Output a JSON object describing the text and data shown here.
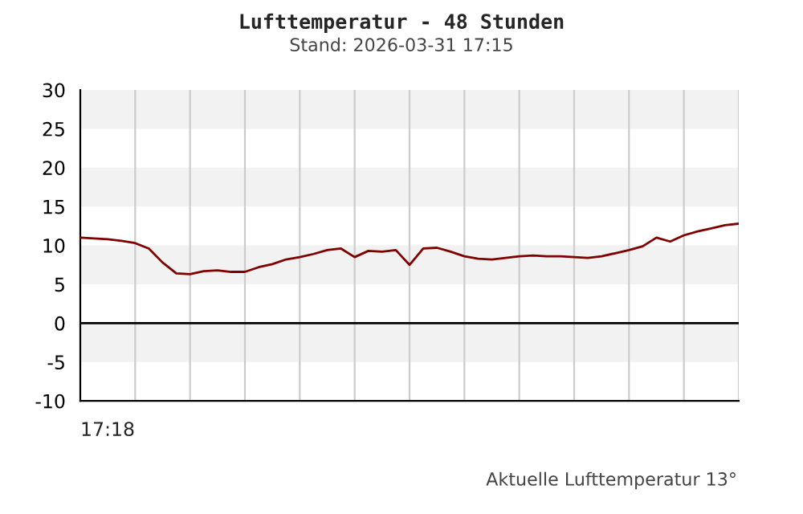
{
  "chart_data": {
    "type": "line",
    "title": "Lufttemperatur - 48 Stunden",
    "subtitle": "Stand: 2026-03-31 17:15",
    "annotations": [
      "17:18",
      "Aktuelle Lufttemperatur 13°"
    ],
    "categories": [
      null,
      null,
      null,
      null,
      null,
      null,
      null,
      null,
      null,
      null,
      null,
      null,
      null,
      null,
      null,
      null,
      null,
      null,
      null,
      null,
      null,
      null,
      null,
      null,
      null,
      null,
      null,
      null,
      null,
      null,
      null,
      null,
      null,
      null,
      null,
      null,
      null,
      null,
      null,
      null,
      null,
      null,
      null,
      null,
      null,
      null,
      null,
      null,
      null
    ],
    "series": [
      {
        "color": "#800000",
        "values": [
          11.0,
          10.9,
          10.8,
          10.6,
          10.3,
          9.6,
          7.8,
          6.4,
          6.3,
          6.7,
          6.8,
          6.6,
          6.6,
          7.2,
          7.6,
          8.2,
          8.5,
          8.9,
          9.4,
          9.6,
          8.5,
          9.3,
          9.2,
          9.4,
          7.5,
          9.6,
          9.7,
          9.2,
          8.6,
          8.3,
          8.2,
          8.4,
          8.6,
          8.7,
          8.6,
          8.6,
          8.5,
          8.4,
          8.6,
          9.0,
          9.4,
          9.9,
          11.0,
          10.5,
          11.3,
          11.8,
          12.2,
          12.6,
          12.8
        ]
      }
    ],
    "ylim": [
      -10,
      30
    ],
    "yticks": [
      -10,
      -5,
      0,
      5,
      10,
      15,
      20,
      25,
      30
    ],
    "grid": "x",
    "bands": [
      {
        "axis": "y",
        "from": 25,
        "to": 30,
        "color": "#f2f2f2"
      },
      {
        "axis": "y",
        "from": 15,
        "to": 20,
        "color": "#f2f2f2"
      },
      {
        "axis": "y",
        "from": 5,
        "to": 10,
        "color": "#f2f2f2"
      },
      {
        "axis": "y",
        "from": -5,
        "to": 0,
        "color": "#f2f2f2"
      }
    ],
    "ref_lines": [
      {
        "axis": "y",
        "value": 0,
        "color": "#000000"
      }
    ]
  }
}
